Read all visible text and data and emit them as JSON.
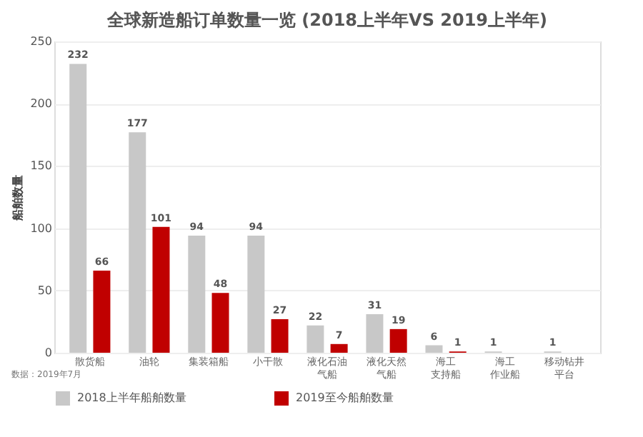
{
  "chart_data": {
    "type": "bar",
    "title": "全球新造船订单数量一览 (2018上半年VS 2019上半年)",
    "ylabel": "船舶数量",
    "categories": [
      "散货船",
      "油轮",
      "集装箱船",
      "小干散",
      "液化石油气船",
      "液化天然气船",
      "海工支持船",
      "海工作业船",
      "移动钻井平台"
    ],
    "series": [
      {
        "name": "2018上半年船舶数量",
        "color": "#c8c8c8",
        "values": [
          232,
          177,
          94,
          94,
          22,
          31,
          6,
          1,
          1
        ]
      },
      {
        "name": "2019至今船舶数量",
        "color": "#c00000",
        "values": [
          66,
          101,
          48,
          27,
          7,
          19,
          1,
          null,
          null
        ]
      }
    ],
    "ylim": [
      0,
      250
    ],
    "yticks": [
      0,
      50,
      100,
      150,
      200,
      250
    ],
    "grid": "y",
    "legend": "bottom",
    "data_labels": true,
    "annotations": [
      "数据：2019年7月"
    ]
  }
}
